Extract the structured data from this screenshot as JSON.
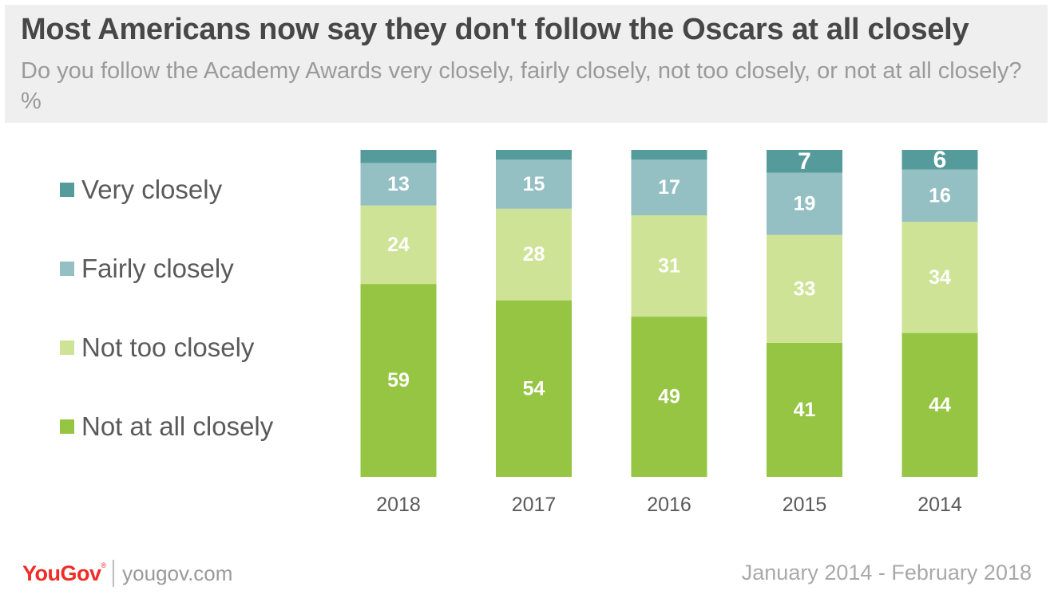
{
  "header": {
    "title": "Most Americans now say they don't follow the Oscars at all closely",
    "subtitle": "Do you follow the Academy Awards very closely, fairly closely, not too closely, or not at all closely? %"
  },
  "legend": {
    "items": [
      {
        "label": "Very closely",
        "color": "#569b9c"
      },
      {
        "label": "Fairly closely",
        "color": "#94bfc3"
      },
      {
        "label": "Not too closely",
        "color": "#cfe396"
      },
      {
        "label": "Not at all closely",
        "color": "#96c443"
      }
    ]
  },
  "chart_data": {
    "type": "bar",
    "stacked": true,
    "unit": "%",
    "categories": [
      "2018",
      "2017",
      "2016",
      "2015",
      "2014"
    ],
    "series": [
      {
        "name": "Not at all closely",
        "values": [
          59,
          54,
          49,
          41,
          44
        ],
        "color": "#96c443",
        "labels": [
          "59",
          "54",
          "49",
          "41",
          "44"
        ]
      },
      {
        "name": "Not too closely",
        "values": [
          24,
          28,
          31,
          33,
          34
        ],
        "color": "#cfe396",
        "labels": [
          "24",
          "28",
          "31",
          "33",
          "34"
        ]
      },
      {
        "name": "Fairly closely",
        "values": [
          13,
          15,
          17,
          19,
          16
        ],
        "color": "#94bfc3",
        "labels": [
          "13",
          "15",
          "17",
          "19",
          "16"
        ]
      },
      {
        "name": "Very closely",
        "values": [
          4,
          3,
          3,
          7,
          6
        ],
        "color": "#569b9c",
        "labels": [
          "",
          "",
          "",
          "7",
          "6"
        ]
      }
    ],
    "ylim": [
      0,
      100
    ],
    "grid": false,
    "legend_position": "left"
  },
  "footer": {
    "brand": "YouGov",
    "brand_mark": "®",
    "url": "yougov.com",
    "date_range": "January 2014 - February 2018"
  }
}
